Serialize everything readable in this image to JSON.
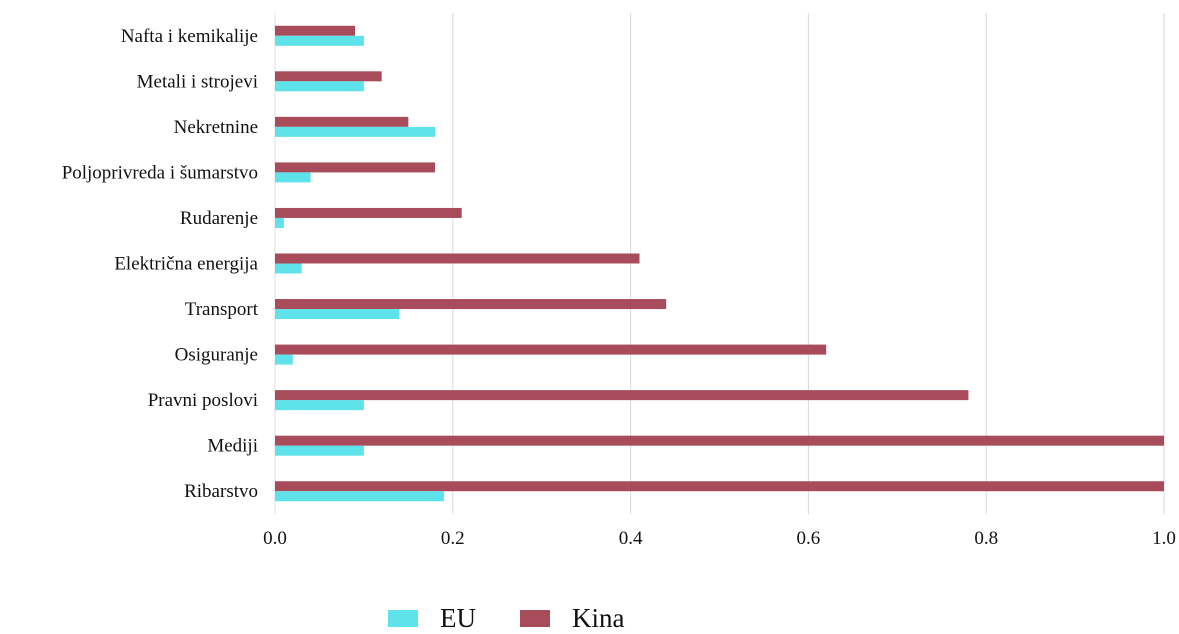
{
  "chart_data": {
    "type": "bar",
    "orientation": "horizontal",
    "categories": [
      "Nafta i kemikalije",
      "Metali i strojevi",
      "Nekretnine",
      "Poljoprivreda i šumarstvo",
      "Rudarenje",
      "Električna energija",
      "Transport",
      "Osiguranje",
      "Pravni poslovi",
      "Mediji",
      "Ribarstvo"
    ],
    "series": [
      {
        "name": "EU",
        "color": "#5ee3ea",
        "values": [
          0.1,
          0.1,
          0.18,
          0.04,
          0.01,
          0.03,
          0.14,
          0.02,
          0.1,
          0.1,
          0.19
        ]
      },
      {
        "name": "Kina",
        "color": "#a84b5a",
        "values": [
          0.09,
          0.12,
          0.15,
          0.18,
          0.21,
          0.41,
          0.44,
          0.62,
          0.78,
          1.0,
          1.0
        ]
      }
    ],
    "xticks": [
      "0.0",
      "0.2",
      "0.4",
      "0.6",
      "0.8",
      "1.0"
    ],
    "xlim": [
      0,
      1.0
    ],
    "grid": "vertical",
    "legend_position": "bottom-center"
  }
}
